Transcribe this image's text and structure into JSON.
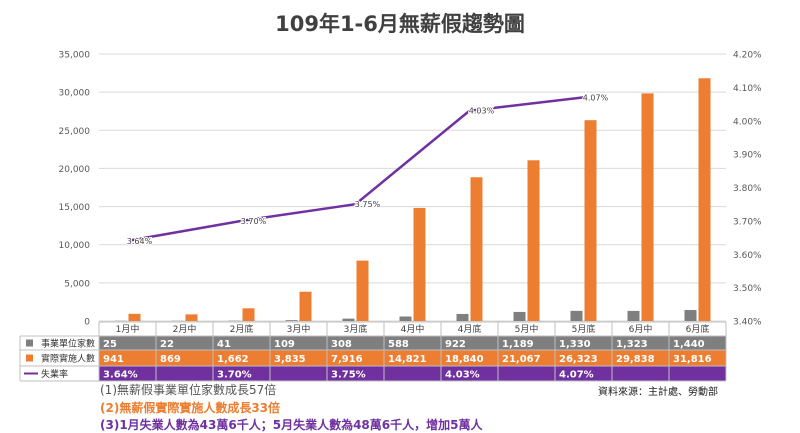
{
  "title": "109年1-6月無薪假趨勢圖",
  "notes": [
    "(1)無薪假事業單位家數成長57倍",
    "(2)無薪假實際實施人數成長33倍",
    "(3)1月失業人數為43萬6千人；5月失業人數為48萬6千人，增加5萬人"
  ],
  "source": "資料來源：主計處、勞動部",
  "colors": {
    "units": "#7F7F7F",
    "people": "#ED7D31",
    "rate": "#7030A0",
    "grid": "#D9D9D9"
  },
  "chart_data": {
    "type": "bar",
    "categories": [
      "1月中",
      "2月中",
      "2月底",
      "3月中",
      "3月底",
      "4月中",
      "4月底",
      "5月中",
      "5月底",
      "6月中",
      "6月底"
    ],
    "series": [
      {
        "name": "事業單位家數",
        "type": "bar",
        "axis": "left",
        "values": [
          25,
          22,
          41,
          109,
          308,
          588,
          922,
          1189,
          1330,
          1323,
          1440
        ],
        "labels": [
          "25",
          "22",
          "41",
          "109",
          "308",
          "588",
          "922",
          "1,189",
          "1,330",
          "1,323",
          "1,440"
        ]
      },
      {
        "name": "實際實施人數",
        "type": "bar",
        "axis": "left",
        "values": [
          941,
          869,
          1662,
          3835,
          7916,
          14821,
          18840,
          21067,
          26323,
          29838,
          31816
        ],
        "labels": [
          "941",
          "869",
          "1,662",
          "3,835",
          "7,916",
          "14,821",
          "18,840",
          "21,067",
          "26,323",
          "29,838",
          "31,816"
        ]
      },
      {
        "name": "失業率",
        "type": "line",
        "axis": "right",
        "values": [
          3.64,
          null,
          3.7,
          null,
          3.75,
          null,
          4.03,
          null,
          4.07,
          null,
          null
        ],
        "labels": [
          "3.64%",
          "",
          "3.70%",
          "",
          "3.75%",
          "",
          "4.03%",
          "",
          "4.07%",
          "",
          ""
        ]
      }
    ],
    "y_left": {
      "range": [
        0,
        35000
      ],
      "ticks": [
        "0",
        "5,000",
        "10,000",
        "15,000",
        "20,000",
        "25,000",
        "30,000",
        "35,000"
      ]
    },
    "y_right": {
      "range": [
        3.4,
        4.2
      ],
      "ticks": [
        "3.40%",
        "3.50%",
        "3.60%",
        "3.70%",
        "3.80%",
        "3.90%",
        "4.00%",
        "4.10%",
        "4.20%"
      ]
    },
    "grid": true,
    "legend": "data-table"
  }
}
